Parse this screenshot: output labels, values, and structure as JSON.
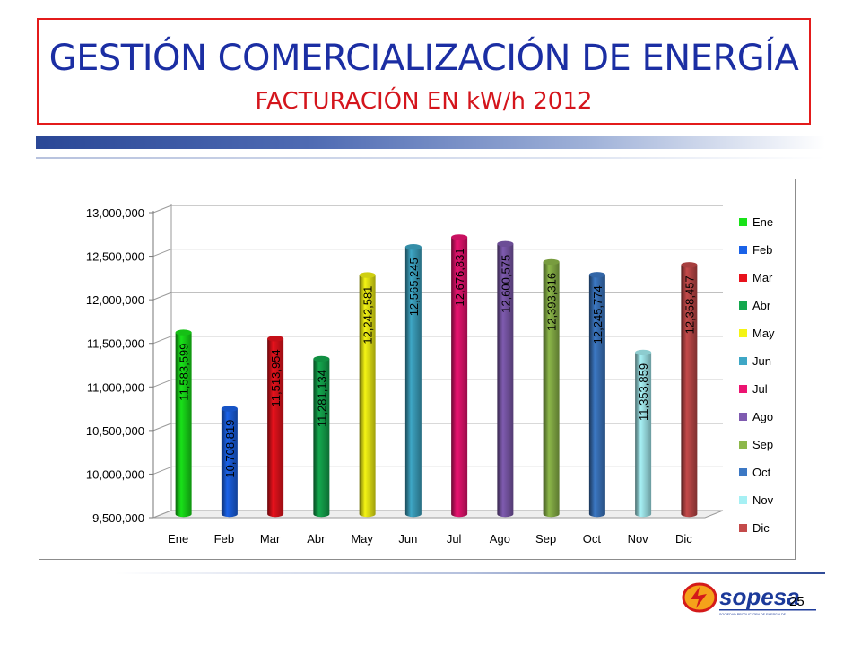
{
  "slide": {
    "title": "GESTIÓN COMERCIALIZACIÓN DE ENERGÍA",
    "subtitle": "FACTURACIÓN EN kW/h  2012",
    "page_number": "25",
    "logo_text": "sopesa",
    "logo_tagline": "SOCIEDAD PRODUCTORA DE ENERGÍA DE SAN ANDRÉS Y PROVIDENCIA S.A. E.S.P."
  },
  "colors": {
    "title": "#1b2ea3",
    "subtitle": "#d4151c",
    "frame": "#e31b1b"
  },
  "chart_data": {
    "type": "bar",
    "title": "",
    "xlabel": "",
    "ylabel": "",
    "ylim": [
      9500000,
      13000000
    ],
    "yticks": [
      9500000,
      10000000,
      10500000,
      11000000,
      11500000,
      12000000,
      12500000,
      13000000
    ],
    "ytick_labels": [
      "9,500,000",
      "10,000,000",
      "10,500,000",
      "11,000,000",
      "11,500,000",
      "12,000,000",
      "12,500,000",
      "13,000,000"
    ],
    "grid": true,
    "legend_position": "right",
    "categories": [
      "Ene",
      "Feb",
      "Mar",
      "Abr",
      "May",
      "Jun",
      "Jul",
      "Ago",
      "Sep",
      "Oct",
      "Nov",
      "Dic"
    ],
    "values": [
      11583599,
      10708819,
      11513954,
      11281134,
      12242581,
      12565245,
      12676831,
      12600575,
      12393316,
      12245774,
      11353859,
      12358457
    ],
    "value_labels": [
      "11,583,599",
      "10,708,819",
      "11,513,954",
      "11,281,134",
      "12,242,581",
      "12,565,245",
      "12,676,831",
      "12,600,575",
      "12,393,316",
      "12,245,774",
      "11,353,859",
      "12,358,457"
    ],
    "colors": [
      "#19e219",
      "#1a62e8",
      "#e8121c",
      "#14a84e",
      "#f4f414",
      "#3ea7c6",
      "#ec1371",
      "#7f5bb0",
      "#8db84a",
      "#3c78c4",
      "#a6f0f4",
      "#c44a4a"
    ],
    "legend": [
      "Ene",
      "Feb",
      "Mar",
      "Abr",
      "May",
      "Jun",
      "Jul",
      "Ago",
      "Sep",
      "Oct",
      "Nov",
      "Dic"
    ]
  }
}
